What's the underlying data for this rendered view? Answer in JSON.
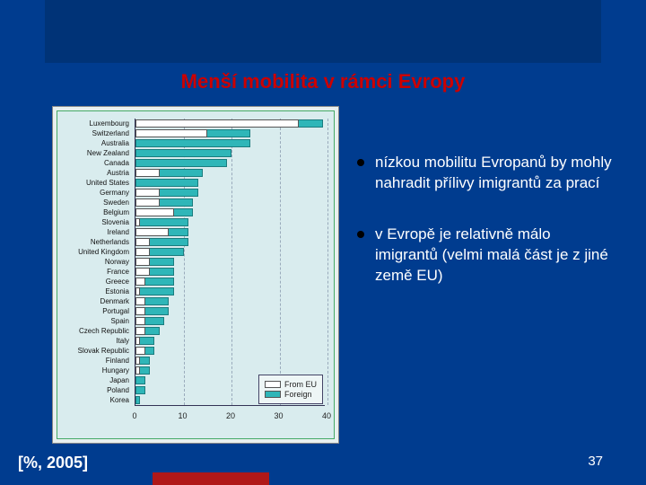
{
  "slide": {
    "title": "Menší mobilita v rámci Evropy",
    "footer_left": "[%, 2005]",
    "page_number": "37",
    "background_color": "#003c8f",
    "accent_color": "#cc0000"
  },
  "bullets": [
    "nízkou mobilitu Evropanů by mohly nahradit přílivy imigrantů za prací",
    "v Evropě je relativně málo imigrantů (velmi malá část je z jiné země EU)"
  ],
  "chart": {
    "type": "bar",
    "orientation": "horizontal",
    "xlim": [
      0,
      40
    ],
    "xticks": [
      0,
      10,
      20,
      30,
      40
    ],
    "series": [
      {
        "key": "from_eu",
        "label": "From EU",
        "color": "#ffffff",
        "border": "#555555"
      },
      {
        "key": "foreign",
        "label": "Foreign",
        "color": "#2fb6b8",
        "border": "#1a7c7e"
      }
    ],
    "categories": [
      {
        "name": "Luxembourg",
        "foreign": 39,
        "from_eu": 34
      },
      {
        "name": "Switzerland",
        "foreign": 24,
        "from_eu": 15
      },
      {
        "name": "Australia",
        "foreign": 24,
        "from_eu": 0
      },
      {
        "name": "New Zealand",
        "foreign": 20,
        "from_eu": 0
      },
      {
        "name": "Canada",
        "foreign": 19,
        "from_eu": 0
      },
      {
        "name": "Austria",
        "foreign": 14,
        "from_eu": 5
      },
      {
        "name": "United States",
        "foreign": 13,
        "from_eu": 0
      },
      {
        "name": "Germany",
        "foreign": 13,
        "from_eu": 5
      },
      {
        "name": "Sweden",
        "foreign": 12,
        "from_eu": 5
      },
      {
        "name": "Belgium",
        "foreign": 12,
        "from_eu": 8
      },
      {
        "name": "Slovenia",
        "foreign": 11,
        "from_eu": 1
      },
      {
        "name": "Ireland",
        "foreign": 11,
        "from_eu": 7
      },
      {
        "name": "Netherlands",
        "foreign": 11,
        "from_eu": 3
      },
      {
        "name": "United Kingdom",
        "foreign": 10,
        "from_eu": 3
      },
      {
        "name": "Norway",
        "foreign": 8,
        "from_eu": 3
      },
      {
        "name": "France",
        "foreign": 8,
        "from_eu": 3
      },
      {
        "name": "Greece",
        "foreign": 8,
        "from_eu": 2
      },
      {
        "name": "Estonia",
        "foreign": 8,
        "from_eu": 1
      },
      {
        "name": "Denmark",
        "foreign": 7,
        "from_eu": 2
      },
      {
        "name": "Portugal",
        "foreign": 7,
        "from_eu": 2
      },
      {
        "name": "Spain",
        "foreign": 6,
        "from_eu": 2
      },
      {
        "name": "Czech Republic",
        "foreign": 5,
        "from_eu": 2
      },
      {
        "name": "Italy",
        "foreign": 4,
        "from_eu": 1
      },
      {
        "name": "Slovak Republic",
        "foreign": 4,
        "from_eu": 2
      },
      {
        "name": "Finland",
        "foreign": 3,
        "from_eu": 1
      },
      {
        "name": "Hungary",
        "foreign": 3,
        "from_eu": 1
      },
      {
        "name": "Japan",
        "foreign": 2,
        "from_eu": 0
      },
      {
        "name": "Poland",
        "foreign": 2,
        "from_eu": 0
      },
      {
        "name": "Korea",
        "foreign": 1,
        "from_eu": 0
      }
    ],
    "label_fontsize": 8,
    "tick_fontsize": 9,
    "panel_bg": "#d9ecee",
    "outer_bg": "#e8f0ef",
    "grid_color": "#99aabb"
  }
}
